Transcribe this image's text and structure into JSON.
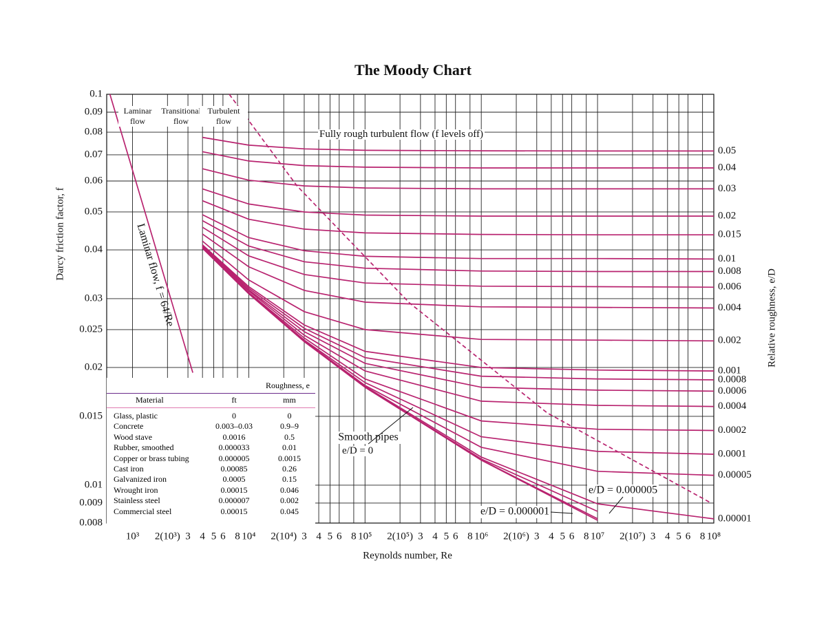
{
  "chart_data": {
    "type": "line",
    "title": "The Moody Chart",
    "x_label": "Reynolds number, Re",
    "y_label": "Darcy friction factor, f",
    "y2_label": "Relative roughness, e/D",
    "log_x": true,
    "log_y": true,
    "grid": true,
    "color": "#b8236f",
    "xlim": [
      600,
      100000000
    ],
    "ylim": [
      0.008,
      0.1
    ],
    "xticks": [
      {
        "value": 1000,
        "label": "10³"
      },
      {
        "value": 2000,
        "label": "2(10³)"
      },
      {
        "value": 3000,
        "label": "3"
      },
      {
        "value": 4000,
        "label": "4"
      },
      {
        "value": 5000,
        "label": "5"
      },
      {
        "value": 6000,
        "label": "6"
      },
      {
        "value": 8000,
        "label": "8"
      },
      {
        "value": 10000,
        "label": "10⁴"
      },
      {
        "value": 20000,
        "label": "2(10⁴)"
      },
      {
        "value": 30000,
        "label": "3"
      },
      {
        "value": 40000,
        "label": "4"
      },
      {
        "value": 50000,
        "label": "5"
      },
      {
        "value": 60000,
        "label": "6"
      },
      {
        "value": 80000,
        "label": "8"
      },
      {
        "value": 100000,
        "label": "10⁵"
      },
      {
        "value": 200000,
        "label": "2(10⁵)"
      },
      {
        "value": 300000,
        "label": "3"
      },
      {
        "value": 400000,
        "label": "4"
      },
      {
        "value": 500000,
        "label": "5"
      },
      {
        "value": 600000,
        "label": "6"
      },
      {
        "value": 800000,
        "label": "8"
      },
      {
        "value": 1000000,
        "label": "10⁶"
      },
      {
        "value": 2000000,
        "label": "2(10⁶)"
      },
      {
        "value": 3000000,
        "label": "3"
      },
      {
        "value": 4000000,
        "label": "4"
      },
      {
        "value": 5000000,
        "label": "5"
      },
      {
        "value": 6000000,
        "label": "6"
      },
      {
        "value": 8000000,
        "label": "8"
      },
      {
        "value": 10000000,
        "label": "10⁷"
      },
      {
        "value": 20000000,
        "label": "2(10⁷)"
      },
      {
        "value": 30000000,
        "label": "3"
      },
      {
        "value": 40000000,
        "label": "4"
      },
      {
        "value": 50000000,
        "label": "5"
      },
      {
        "value": 60000000,
        "label": "6"
      },
      {
        "value": 80000000,
        "label": "8"
      },
      {
        "value": 100000000,
        "label": "10⁸"
      }
    ],
    "yticks": [
      0.1,
      0.09,
      0.08,
      0.07,
      0.06,
      0.05,
      0.04,
      0.03,
      0.025,
      0.02,
      0.015,
      0.01,
      0.009,
      0.008
    ],
    "x": [
      4000,
      10000,
      30000,
      100000,
      1000000,
      10000000,
      100000000
    ],
    "series": [
      {
        "name": "0.05",
        "label": "right",
        "values": [
          0.0776,
          0.0741,
          0.0725,
          0.0719,
          0.0717,
          0.0716,
          0.0716
        ]
      },
      {
        "name": "0.04",
        "label": "right",
        "values": [
          0.0713,
          0.0675,
          0.0657,
          0.0651,
          0.0648,
          0.0648,
          0.0648
        ]
      },
      {
        "name": "0.03",
        "label": "right",
        "values": [
          0.0645,
          0.0603,
          0.0583,
          0.0576,
          0.0573,
          0.0573,
          0.0573
        ]
      },
      {
        "name": "0.02",
        "label": "right",
        "values": [
          0.0573,
          0.0524,
          0.05,
          0.0491,
          0.0488,
          0.0488,
          0.0488
        ]
      },
      {
        "name": "0.015",
        "label": "right",
        "values": [
          0.0534,
          0.0479,
          0.0452,
          0.0442,
          0.0438,
          0.0437,
          0.0437
        ]
      },
      {
        "name": "0.01",
        "label": "right",
        "values": [
          0.0492,
          0.043,
          0.0398,
          0.0385,
          0.038,
          0.038,
          0.0379
        ]
      },
      {
        "name": "0.008",
        "label": "right",
        "values": [
          0.0475,
          0.0409,
          0.0373,
          0.0359,
          0.0353,
          0.0352,
          0.0352
        ]
      },
      {
        "name": "0.006",
        "label": "right",
        "values": [
          0.0457,
          0.0386,
          0.0346,
          0.0329,
          0.0323,
          0.0322,
          0.0321
        ]
      },
      {
        "name": "0.004",
        "label": "right",
        "values": [
          0.0439,
          0.0362,
          0.0315,
          0.0294,
          0.0286,
          0.0285,
          0.0284
        ]
      },
      {
        "name": "0.002",
        "label": "right",
        "values": [
          0.0421,
          0.0335,
          0.0278,
          0.025,
          0.0236,
          0.0235,
          0.0234
        ]
      },
      {
        "name": "0.001",
        "label": "right",
        "values": [
          0.0412,
          0.0322,
          0.0257,
          0.022,
          0.02,
          0.0197,
          0.0196
        ]
      },
      {
        "name": "0.0008",
        "label": "right",
        "values": [
          0.041,
          0.0319,
          0.0252,
          0.0212,
          0.019,
          0.0187,
          0.0186
        ]
      },
      {
        "name": "0.0006",
        "label": "right",
        "values": [
          0.0409,
          0.0316,
          0.0247,
          0.0205,
          0.0178,
          0.0175,
          0.0174
        ]
      },
      {
        "name": "0.0004",
        "label": "right",
        "values": [
          0.0407,
          0.0314,
          0.0242,
          0.0196,
          0.0164,
          0.016,
          0.0159
        ]
      },
      {
        "name": "0.0002",
        "label": "right",
        "values": [
          0.0406,
          0.0311,
          0.0238,
          0.0187,
          0.0146,
          0.0139,
          0.0138
        ]
      },
      {
        "name": "0.0001",
        "label": "right",
        "values": [
          0.0405,
          0.031,
          0.0235,
          0.0183,
          0.0133,
          0.0122,
          0.012
        ]
      },
      {
        "name": "0.00005",
        "label": "right",
        "values": [
          0.0404,
          0.0309,
          0.0234,
          0.018,
          0.0125,
          0.01085,
          0.0106
        ]
      },
      {
        "name": "0.00001",
        "label": "right",
        "values": [
          0.0404,
          0.0309,
          0.0233,
          0.0179,
          0.0118,
          0.00896,
          0.0082
        ]
      },
      {
        "name": "e/D = 0.000005",
        "label": "inside",
        "values": [
          null,
          null,
          null,
          0.0178,
          0.01167,
          0.00857,
          null
        ]
      },
      {
        "name": "e/D = 0.000001",
        "label": "inside",
        "values": [
          null,
          null,
          null,
          0.0178,
          0.0116,
          0.00821,
          null
        ]
      },
      {
        "name": "Smooth pipes",
        "label": "inside",
        "values": [
          0.0404,
          0.0309,
          0.0233,
          0.0178,
          0.01159,
          0.00813,
          null
        ]
      },
      {
        "name": "Laminar flow, f = 64/Re",
        "label": "along",
        "x": [
          640,
          3300
        ],
        "values": [
          0.1,
          0.0194
        ]
      },
      {
        "dashed": true,
        "x": [
          6800,
          26000,
          240000,
          3700000,
          93000000
        ],
        "values": [
          0.1,
          0.0583,
          0.0293,
          0.0153,
          0.00903
        ]
      }
    ],
    "annotations": [
      "Laminar flow",
      "Transitional flow",
      "Turbulent flow",
      "Fully rough turbulent flow (f levels off)",
      "e/D = 0"
    ],
    "roughness_table": {
      "title": "Roughness, e",
      "columns": [
        "Material",
        "ft",
        "mm"
      ],
      "rows": [
        [
          "Glass, plastic",
          "0",
          "0"
        ],
        [
          "Concrete",
          "0.003–0.03",
          "0.9–9"
        ],
        [
          "Wood stave",
          "0.0016",
          "0.5"
        ],
        [
          "Rubber, smoothed",
          "0.000033",
          "0.01"
        ],
        [
          "Copper or brass tubing",
          "0.000005",
          "0.0015"
        ],
        [
          "Cast iron",
          "0.00085",
          "0.26"
        ],
        [
          "Galvanized iron",
          "0.0005",
          "0.15"
        ],
        [
          "Wrought iron",
          "0.00015",
          "0.046"
        ],
        [
          "Stainless steel",
          "0.000007",
          "0.002"
        ],
        [
          "Commercial steel",
          "0.00015",
          "0.045"
        ]
      ]
    }
  }
}
